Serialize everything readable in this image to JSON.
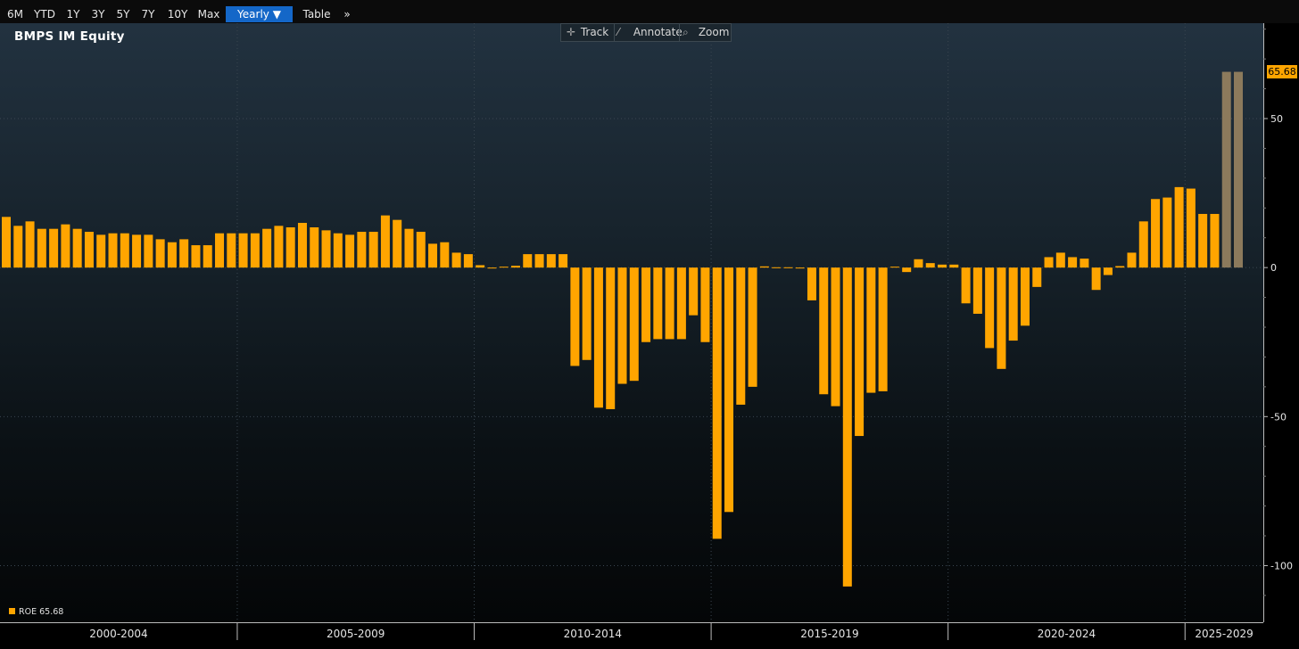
{
  "toolbar": {
    "buttons": [
      "6M",
      "YTD",
      "1Y",
      "3Y",
      "5Y",
      "7Y",
      "10Y",
      "Max"
    ],
    "frequency": "Yearly ▼",
    "table": "Table",
    "more": "»"
  },
  "chart_tools": {
    "track": "Track",
    "annotate": "Annotate",
    "zoom": "Zoom",
    "track_icon": "crosshair-icon",
    "annotate_icon": "pencil-icon",
    "zoom_icon": "magnifier-icon"
  },
  "colors": {
    "bar": "#ffa500",
    "estimate_bar": "#8c7a5c",
    "last_value_badge": "#ffa500"
  },
  "chart_data": {
    "type": "bar",
    "title": "BMPS IM Equity",
    "legend": {
      "label": "ROE",
      "value": "65.68",
      "position": "bottom-left"
    },
    "last_value_label": "65.68",
    "y_axis": {
      "position": "right",
      "ticks": [
        50,
        0,
        -50,
        -100
      ],
      "ylim": [
        -119,
        82
      ]
    },
    "x_axis": {
      "period_labels": [
        "2000-2004",
        "2005-2009",
        "2010-2014",
        "2015-2019",
        "2020-2024",
        "2025-2029"
      ]
    },
    "grid": true,
    "values": [
      17,
      14,
      15.5,
      13,
      13,
      14.5,
      13,
      12,
      11,
      11.5,
      11.5,
      11,
      11,
      9.5,
      8.5,
      9.5,
      7.5,
      7.5,
      11.5,
      11.5,
      11.5,
      11.5,
      13,
      14,
      13.5,
      15,
      13.5,
      12.5,
      11.5,
      11,
      12,
      12,
      17.5,
      16,
      13,
      12,
      8,
      8.5,
      5,
      4.5,
      0.8,
      -0.3,
      0.3,
      0.6,
      4.5,
      4.5,
      4.5,
      4.5,
      -33,
      -31,
      -47,
      -47.5,
      -39,
      -38,
      -25,
      -24,
      -24,
      -24,
      -16,
      -25,
      -91,
      -82,
      -46,
      -40,
      0.4,
      0.1,
      0.1,
      -0.1,
      -11,
      -42.5,
      -46.5,
      -107,
      -56.5,
      -42,
      -41.5,
      0.3,
      -1.5,
      2.8,
      1.5,
      1,
      1,
      -12,
      -15.5,
      -27,
      -34,
      -24.5,
      -19.5,
      -6.5,
      3.5,
      5,
      3.5,
      3,
      -7.5,
      -2.5,
      0.5,
      5,
      15.5,
      23,
      23.5,
      27,
      26.5,
      18,
      18,
      65.68,
      65.68
    ],
    "estimate_start_index": 103
  }
}
